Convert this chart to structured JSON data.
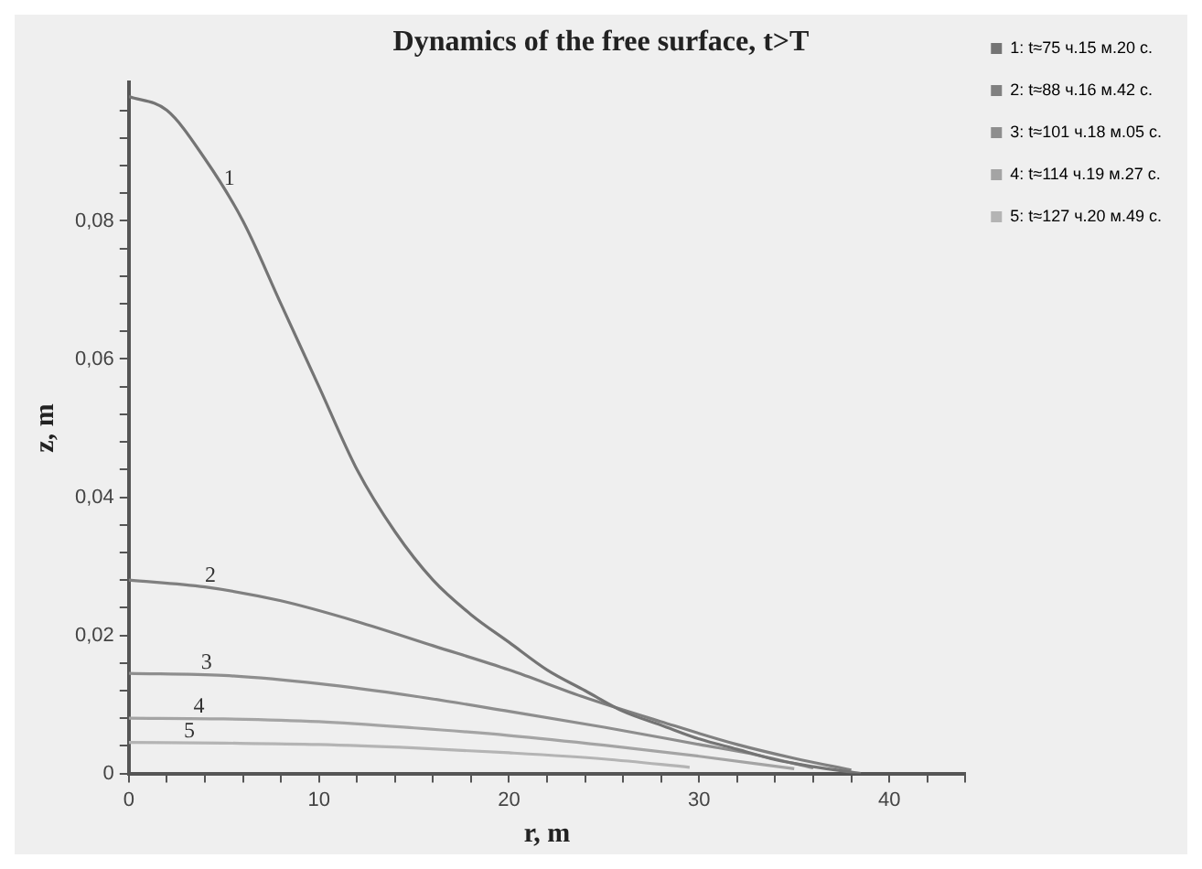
{
  "chart_data": {
    "type": "line",
    "title": "Dynamics of the free surface, t>T",
    "xlabel": "r, m",
    "ylabel": "z, m",
    "series": [
      {
        "name": "1: t≈75 ч.15 м.20 с.",
        "color": "#747474",
        "x": [
          0,
          2,
          4,
          6,
          8,
          10,
          12,
          14,
          16,
          18,
          20,
          22,
          24,
          26,
          28,
          30,
          32,
          34,
          36,
          38.5
        ],
        "values": [
          0.098,
          0.096,
          0.089,
          0.08,
          0.068,
          0.056,
          0.044,
          0.035,
          0.028,
          0.023,
          0.019,
          0.015,
          0.012,
          0.009,
          0.007,
          0.005,
          0.0035,
          0.002,
          0.001,
          0
        ]
      },
      {
        "name": "2: t≈88 ч.16 м.42 с.",
        "color": "#808080",
        "x": [
          0,
          4,
          8,
          12,
          16,
          20,
          24,
          28,
          32,
          35,
          38
        ],
        "values": [
          0.028,
          0.027,
          0.025,
          0.022,
          0.0185,
          0.015,
          0.011,
          0.0075,
          0.0042,
          0.0022,
          0.0005
        ]
      },
      {
        "name": "3: t≈101 ч.18 м.05 с.",
        "color": "#8e8e8e",
        "x": [
          0,
          5,
          10,
          15,
          20,
          25,
          30,
          33,
          36
        ],
        "values": [
          0.0145,
          0.0142,
          0.013,
          0.0112,
          0.009,
          0.0067,
          0.0042,
          0.0027,
          0.0008
        ]
      },
      {
        "name": "4: t≈114 ч.19 м.27 с.",
        "color": "#a4a4a4",
        "x": [
          0,
          5,
          10,
          15,
          20,
          25,
          30,
          35
        ],
        "values": [
          0.008,
          0.0079,
          0.0075,
          0.0066,
          0.0055,
          0.0041,
          0.0025,
          0.0007
        ]
      },
      {
        "name": "5: t≈127 ч.20 м.49 с.",
        "color": "#b4b4b4",
        "x": [
          0,
          5,
          10,
          15,
          20,
          25,
          29.5
        ],
        "values": [
          0.0045,
          0.0044,
          0.0042,
          0.0037,
          0.003,
          0.0021,
          0.0009
        ]
      }
    ],
    "annotations": [
      {
        "text": "1",
        "x": 5,
        "y": 0.0845
      },
      {
        "text": "2",
        "x": 4,
        "y": 0.027
      },
      {
        "text": "3",
        "x": 3.8,
        "y": 0.0144
      },
      {
        "text": "4",
        "x": 3.4,
        "y": 0.008
      },
      {
        "text": "5",
        "x": 2.9,
        "y": 0.0045
      }
    ],
    "xlim": [
      0,
      44
    ],
    "ylim": [
      0,
      0.1
    ],
    "xticks": [
      0,
      {
        "value": 2,
        "label": null
      },
      {
        "value": 4,
        "label": null
      },
      {
        "value": 6,
        "label": null
      },
      {
        "value": 8,
        "label": null
      },
      10,
      {
        "value": 12,
        "label": null
      },
      {
        "value": 14,
        "label": null
      },
      {
        "value": 16,
        "label": null
      },
      {
        "value": 18,
        "label": null
      },
      20,
      {
        "value": 22,
        "label": null
      },
      {
        "value": 24,
        "label": null
      },
      {
        "value": 26,
        "label": null
      },
      {
        "value": 28,
        "label": null
      },
      30,
      {
        "value": 32,
        "label": null
      },
      {
        "value": 34,
        "label": null
      },
      {
        "value": 36,
        "label": null
      },
      {
        "value": 38,
        "label": null
      },
      40,
      {
        "value": 42,
        "label": null
      },
      {
        "value": 44,
        "label": null
      }
    ],
    "yticks": [
      0,
      {
        "value": 0.004,
        "label": null
      },
      {
        "value": 0.008,
        "label": null
      },
      {
        "value": 0.012,
        "label": null
      },
      {
        "value": 0.016,
        "label": null
      },
      {
        "value": 0.02,
        "label": "0,02"
      },
      {
        "value": 0.024,
        "label": null
      },
      {
        "value": 0.028,
        "label": null
      },
      {
        "value": 0.032,
        "label": null
      },
      {
        "value": 0.036,
        "label": null
      },
      {
        "value": 0.04,
        "label": "0,04"
      },
      {
        "value": 0.044,
        "label": null
      },
      {
        "value": 0.048,
        "label": null
      },
      {
        "value": 0.052,
        "label": null
      },
      {
        "value": 0.056,
        "label": null
      },
      {
        "value": 0.06,
        "label": "0,06"
      },
      {
        "value": 0.064,
        "label": null
      },
      {
        "value": 0.068,
        "label": null
      },
      {
        "value": 0.072,
        "label": null
      },
      {
        "value": 0.076,
        "label": null
      },
      {
        "value": 0.08,
        "label": "0,08"
      },
      {
        "value": 0.084,
        "label": null
      },
      {
        "value": 0.088,
        "label": null
      },
      {
        "value": 0.092,
        "label": null
      },
      {
        "value": 0.096,
        "label": null
      }
    ],
    "grid": false,
    "legend": "top right",
    "marker": "none",
    "line_style": "solid"
  }
}
